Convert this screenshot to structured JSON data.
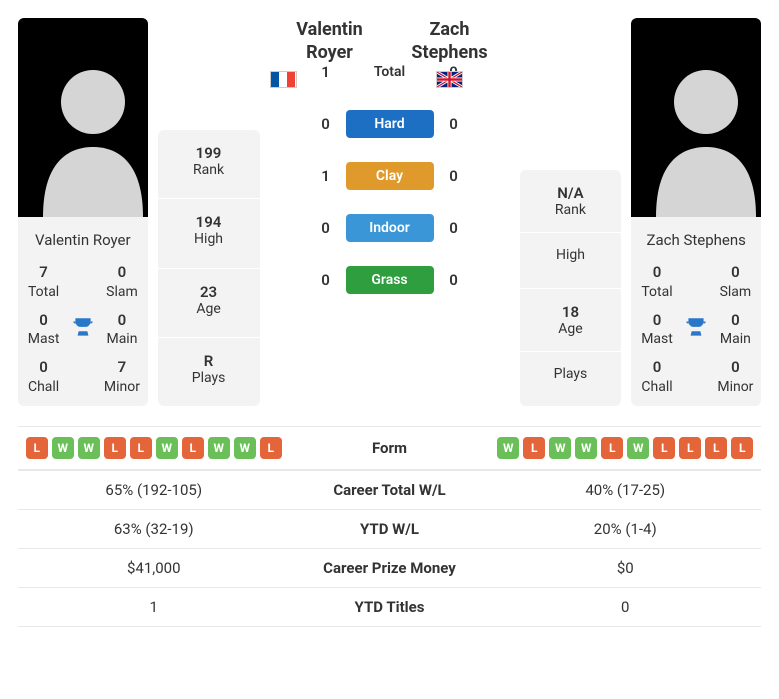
{
  "colors": {
    "hard": "#1d6fc4",
    "clay": "#e09a2b",
    "indoor": "#3a96d6",
    "grass": "#2e9e3f",
    "form_w": "#6bbf59",
    "form_l": "#e5653a",
    "trophy": "#2a77c9",
    "flag_fr_blue": "#0055a4",
    "flag_fr_white": "#ffffff",
    "flag_fr_red": "#ef4135",
    "flag_uk_blue": "#00247d",
    "flag_uk_red": "#cf142b",
    "flag_uk_white": "#ffffff"
  },
  "p1": {
    "name_full": "Valentin Royer",
    "name_line1": "Valentin",
    "name_line2": "Royer",
    "flag": "fr",
    "rank": "199",
    "high": "194",
    "age": "23",
    "plays": "R",
    "titles": {
      "total": "7",
      "slam": "0",
      "mast": "0",
      "main": "0",
      "chall": "0",
      "minor": "7"
    }
  },
  "p2": {
    "name_full": "Zach Stephens",
    "name_line1": "Zach",
    "name_line2": "Stephens",
    "flag": "uk",
    "rank": "N/A",
    "high": "",
    "age": "18",
    "plays": "",
    "titles": {
      "total": "0",
      "slam": "0",
      "mast": "0",
      "main": "0",
      "chall": "0",
      "minor": "0"
    }
  },
  "labels": {
    "rank": "Rank",
    "high": "High",
    "age": "Age",
    "plays": "Plays",
    "total": "Total",
    "slam": "Slam",
    "mast": "Mast",
    "main": "Main",
    "chall": "Chall",
    "minor": "Minor"
  },
  "h2h": {
    "rows": [
      {
        "p1": "1",
        "label": "Total",
        "p2": "0",
        "pill": false
      },
      {
        "p1": "0",
        "label": "Hard",
        "p2": "0",
        "pill": true,
        "color": "#1d6fc4"
      },
      {
        "p1": "1",
        "label": "Clay",
        "p2": "0",
        "pill": true,
        "color": "#e09a2b"
      },
      {
        "p1": "0",
        "label": "Indoor",
        "p2": "0",
        "pill": true,
        "color": "#3a96d6"
      },
      {
        "p1": "0",
        "label": "Grass",
        "p2": "0",
        "pill": true,
        "color": "#2e9e3f"
      }
    ]
  },
  "form": {
    "label": "Form",
    "p1": [
      "L",
      "W",
      "W",
      "L",
      "L",
      "W",
      "L",
      "W",
      "W",
      "L"
    ],
    "p2": [
      "W",
      "L",
      "W",
      "W",
      "L",
      "W",
      "L",
      "L",
      "L",
      "L"
    ]
  },
  "compare": [
    {
      "p1": "65% (192-105)",
      "label": "Career Total W/L",
      "p2": "40% (17-25)"
    },
    {
      "p1": "63% (32-19)",
      "label": "YTD W/L",
      "p2": "20% (1-4)"
    },
    {
      "p1": "$41,000",
      "label": "Career Prize Money",
      "p2": "$0"
    },
    {
      "p1": "1",
      "label": "YTD Titles",
      "p2": "0"
    }
  ]
}
